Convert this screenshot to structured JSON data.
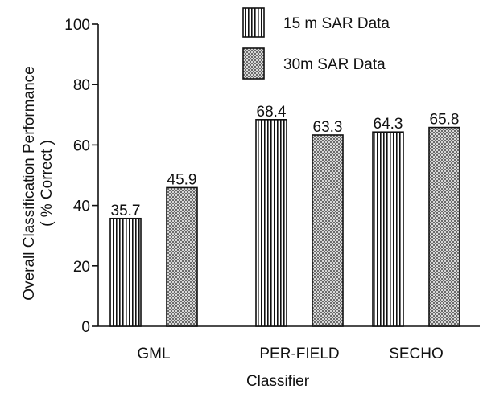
{
  "chart_data": {
    "type": "bar",
    "xlabel": "Classifier",
    "ylabel": "Overall Classification Performance",
    "ylabel_line2": "( % Correct )",
    "categories": [
      "GML",
      "PER-FIELD",
      "SECHO"
    ],
    "series": [
      {
        "name": "15 m SAR Data",
        "values": [
          35.7,
          68.4,
          64.3
        ],
        "labels": [
          "35.7",
          "68.4",
          "64.3"
        ],
        "pattern": "vertical-stripes"
      },
      {
        "name": "30m SAR Data",
        "values": [
          45.9,
          63.3,
          65.8
        ],
        "labels": [
          "45.9",
          "63.3",
          "65.8"
        ],
        "pattern": "dots"
      }
    ],
    "ylim": [
      0,
      100
    ],
    "yticks": [
      0,
      20,
      40,
      60,
      80,
      100
    ],
    "legend": "top-center",
    "grid": false
  }
}
